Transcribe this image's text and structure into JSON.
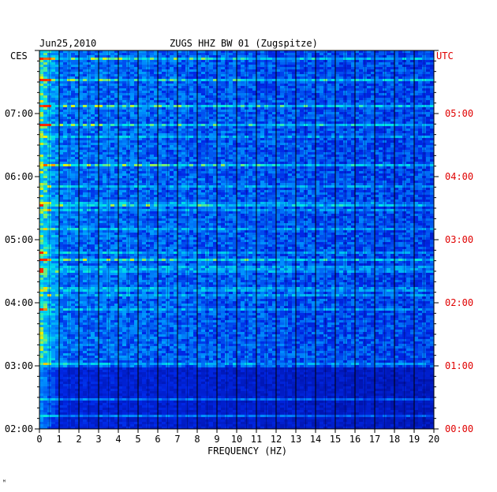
{
  "chart_data": {
    "type": "heatmap",
    "title": "ZUGS HHZ BW 01 (Zugspitze)",
    "date": "Jun25,2010",
    "left_label": "CES",
    "right_label": "UTC",
    "xlabel": "FREQUENCY (HZ)",
    "xlim": [
      0,
      20
    ],
    "x_ticks": [
      "0",
      "1",
      "2",
      "3",
      "4",
      "5",
      "6",
      "7",
      "8",
      "9",
      "10",
      "11",
      "12",
      "13",
      "14",
      "15",
      "16",
      "17",
      "18",
      "19",
      "20"
    ],
    "ces_ticks": [
      {
        "label": "02:00",
        "hour": 0
      },
      {
        "label": "03:00",
        "hour": 1
      },
      {
        "label": "04:00",
        "hour": 2
      },
      {
        "label": "05:00",
        "hour": 3
      },
      {
        "label": "06:00",
        "hour": 4
      },
      {
        "label": "07:00",
        "hour": 5
      }
    ],
    "utc_ticks": [
      {
        "label": "00:00",
        "hour": 0
      },
      {
        "label": "01:00",
        "hour": 1
      },
      {
        "label": "02:00",
        "hour": 2
      },
      {
        "label": "03:00",
        "hour": 3
      },
      {
        "label": "04:00",
        "hour": 4
      },
      {
        "label": "05:00",
        "hour": 5
      }
    ],
    "time_range_hours": [
      0,
      6
    ],
    "strong_rows_hours": [
      0.23,
      0.5,
      2.7,
      3.55,
      4.2,
      4.85,
      5.15,
      5.55,
      5.9
    ],
    "colors": {
      "low": "#0010a0",
      "mid": "#00a0ff",
      "high": "#ffff00",
      "peak": "#ff2000",
      "label_red": "#e00000"
    }
  },
  "footer_mark": "ᴹ"
}
